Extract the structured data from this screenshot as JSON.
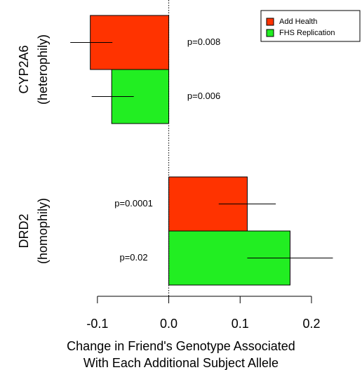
{
  "chart_data": {
    "type": "hbar",
    "categories": [
      "CYP2A6",
      "DRD2"
    ],
    "category_subtitles": [
      "(heterophily)",
      "(homophily)"
    ],
    "series": [
      {
        "name": "Add Health",
        "color": "#ff3300",
        "values": [
          -0.11,
          0.11
        ],
        "ci_low": [
          -0.138,
          0.07
        ],
        "ci_high": [
          -0.079,
          0.15
        ],
        "p_labels": [
          "p=0.008",
          "p=0.0001"
        ]
      },
      {
        "name": "FHS Replication",
        "color": "#22ee22",
        "values": [
          -0.08,
          0.17
        ],
        "ci_low": [
          -0.108,
          0.11
        ],
        "ci_high": [
          -0.049,
          0.23
        ],
        "p_labels": [
          "p=0.006",
          "p=0.02"
        ]
      }
    ],
    "xlabel": [
      "Change in Friend's Genotype Associated",
      "With Each Additional Subject Allele"
    ],
    "xlim": [
      -0.15,
      0.26
    ],
    "xticks": [
      -0.1,
      {
        "value": 0,
        "label": "0.0"
      },
      0.1,
      0.2
    ],
    "zero_line": true,
    "legend": "top-right"
  }
}
